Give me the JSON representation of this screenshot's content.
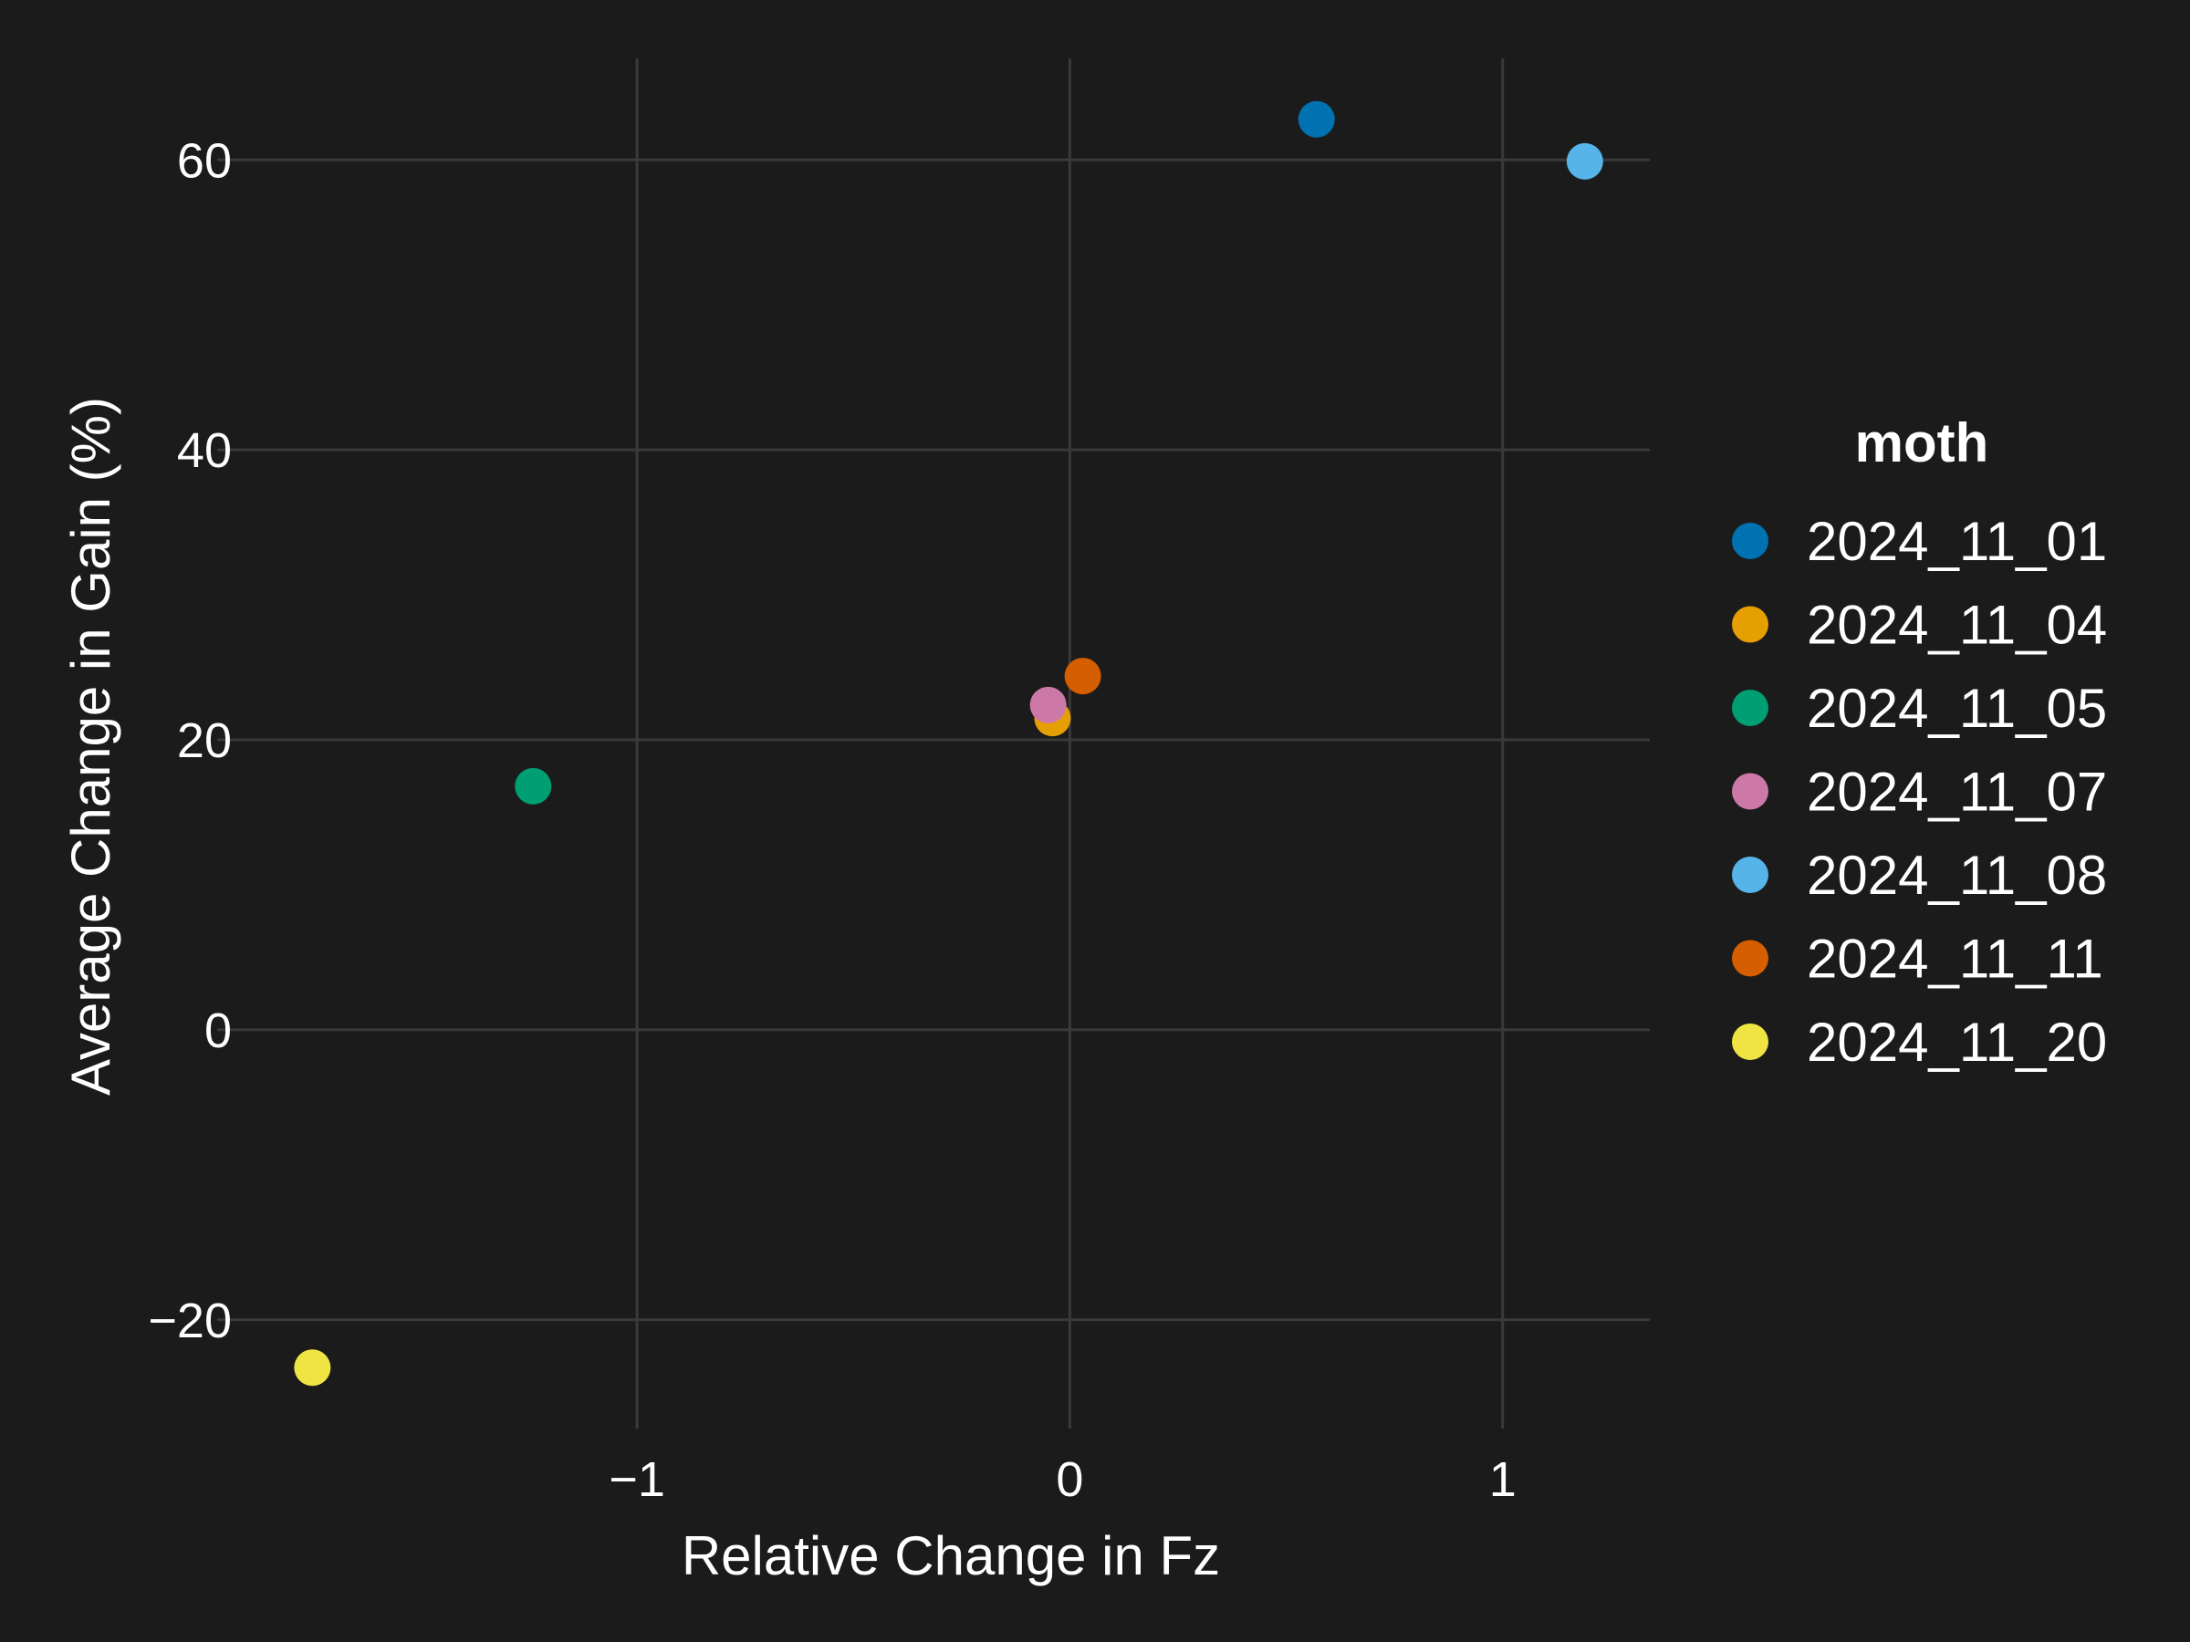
{
  "chart_data": {
    "type": "scatter",
    "xlabel": "Relative Change in Fz",
    "ylabel": "Average Change in Gain (%)",
    "xlim": [
      -1.97,
      1.34
    ],
    "ylim": [
      -27.5,
      67.0
    ],
    "x_ticks": [
      -1,
      0,
      1
    ],
    "y_ticks": [
      -20,
      0,
      20,
      40,
      60
    ],
    "x_tick_labels": [
      "−1",
      "0",
      "1"
    ],
    "y_tick_labels": [
      "−20",
      "0",
      "20",
      "40",
      "60"
    ],
    "grid": true,
    "background": "#1b1b1b",
    "legend": {
      "title": "moth",
      "placement": "right"
    },
    "series": [
      {
        "name": "2024_11_01",
        "color": "#0072b2",
        "points": [
          {
            "x": 0.57,
            "y": 62.8
          }
        ]
      },
      {
        "name": "2024_11_04",
        "color": "#e69f00",
        "points": [
          {
            "x": -0.04,
            "y": 21.5
          }
        ]
      },
      {
        "name": "2024_11_05",
        "color": "#009e73",
        "points": [
          {
            "x": -1.24,
            "y": 16.8
          }
        ]
      },
      {
        "name": "2024_11_07",
        "color": "#cc79a7",
        "points": [
          {
            "x": -0.05,
            "y": 22.4
          }
        ]
      },
      {
        "name": "2024_11_08",
        "color": "#56b4e9",
        "points": [
          {
            "x": 1.19,
            "y": 59.9
          }
        ]
      },
      {
        "name": "2024_11_11",
        "color": "#d55e00",
        "points": [
          {
            "x": 0.03,
            "y": 24.4
          }
        ]
      },
      {
        "name": "2024_11_20",
        "color": "#f0e442",
        "points": [
          {
            "x": -1.75,
            "y": -23.3
          }
        ]
      }
    ]
  }
}
